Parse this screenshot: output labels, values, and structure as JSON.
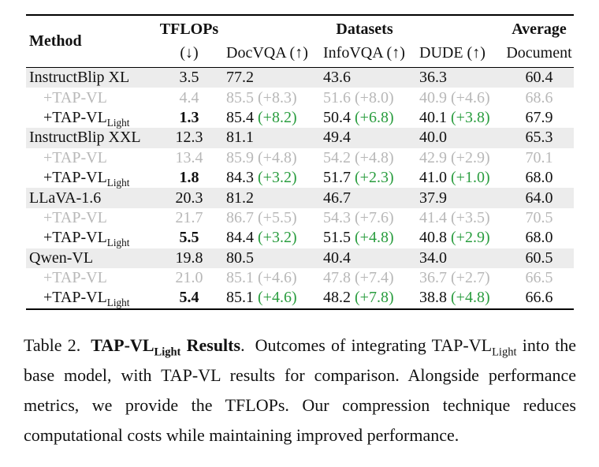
{
  "colors": {
    "green": "#2a9d3f",
    "gray-text": "#b8b8b8",
    "row-band": "#ececec"
  },
  "table": {
    "header": {
      "method": "Method",
      "tflops": "TFLOPs",
      "tflops_arrow": "(↓)",
      "datasets": "Datasets",
      "docvqa": "DocVQA (↑)",
      "infovqa": "InfoVQA (↑)",
      "dude": "DUDE (↑)",
      "average": "Average",
      "average_sub": "Document"
    },
    "rows": [
      {
        "method": "InstructBlip XL",
        "method_sub": "",
        "tflops": "3.5",
        "docvqa": "77.2",
        "docvqa_delta": "",
        "infovqa": "43.6",
        "infovqa_delta": "",
        "dude": "36.3",
        "dude_delta": "",
        "average": "60.4"
      },
      {
        "method": "+TAP-VL",
        "method_sub": "",
        "tflops": "4.4",
        "docvqa": "85.5",
        "docvqa_delta": "(+8.3)",
        "infovqa": "51.6",
        "infovqa_delta": "(+8.0)",
        "dude": "40.9",
        "dude_delta": "(+4.6)",
        "average": "68.6"
      },
      {
        "method": "+TAP-VL",
        "method_sub": "Light",
        "tflops": "1.3",
        "docvqa": "85.4",
        "docvqa_delta": "(+8.2)",
        "infovqa": "50.4",
        "infovqa_delta": "(+6.8)",
        "dude": "40.1",
        "dude_delta": "(+3.8)",
        "average": "67.9"
      },
      {
        "method": "InstructBlip XXL",
        "method_sub": "",
        "tflops": "12.3",
        "docvqa": "81.1",
        "docvqa_delta": "",
        "infovqa": "49.4",
        "infovqa_delta": "",
        "dude": "40.0",
        "dude_delta": "",
        "average": "65.3"
      },
      {
        "method": "+TAP-VL",
        "method_sub": "",
        "tflops": "13.4",
        "docvqa": "85.9",
        "docvqa_delta": "(+4.8)",
        "infovqa": "54.2",
        "infovqa_delta": "(+4.8)",
        "dude": "42.9",
        "dude_delta": "(+2.9)",
        "average": "70.1"
      },
      {
        "method": "+TAP-VL",
        "method_sub": "Light",
        "tflops": "1.8",
        "docvqa": "84.3",
        "docvqa_delta": "(+3.2)",
        "infovqa": "51.7",
        "infovqa_delta": "(+2.3)",
        "dude": "41.0",
        "dude_delta": "(+1.0)",
        "average": "68.0"
      },
      {
        "method": "LLaVA-1.6",
        "method_sub": "",
        "tflops": "20.3",
        "docvqa": "81.2",
        "docvqa_delta": "",
        "infovqa": "46.7",
        "infovqa_delta": "",
        "dude": "37.9",
        "dude_delta": "",
        "average": "64.0"
      },
      {
        "method": "+TAP-VL",
        "method_sub": "",
        "tflops": "21.7",
        "docvqa": "86.7",
        "docvqa_delta": "(+5.5)",
        "infovqa": "54.3",
        "infovqa_delta": "(+7.6)",
        "dude": "41.4",
        "dude_delta": "(+3.5)",
        "average": "70.5"
      },
      {
        "method": "+TAP-VL",
        "method_sub": "Light",
        "tflops": "5.5",
        "docvqa": "84.4",
        "docvqa_delta": "(+3.2)",
        "infovqa": "51.5",
        "infovqa_delta": "(+4.8)",
        "dude": "40.8",
        "dude_delta": "(+2.9)",
        "average": "68.0"
      },
      {
        "method": "Qwen-VL",
        "method_sub": "",
        "tflops": "19.8",
        "docvqa": "80.5",
        "docvqa_delta": "",
        "infovqa": "40.4",
        "infovqa_delta": "",
        "dude": "34.0",
        "dude_delta": "",
        "average": "60.5"
      },
      {
        "method": "+TAP-VL",
        "method_sub": "",
        "tflops": "21.0",
        "docvqa": "85.1",
        "docvqa_delta": "(+4.6)",
        "infovqa": "47.8",
        "infovqa_delta": "(+7.4)",
        "dude": "36.7",
        "dude_delta": "(+2.7)",
        "average": "66.5"
      },
      {
        "method": "+TAP-VL",
        "method_sub": "Light",
        "tflops": "5.4",
        "docvqa": "85.1",
        "docvqa_delta": "(+4.6)",
        "infovqa": "48.2",
        "infovqa_delta": "(+7.8)",
        "dude": "38.8",
        "dude_delta": "(+4.8)",
        "average": "66.6"
      }
    ]
  },
  "caption": {
    "label": "Table 2.",
    "title_main": "TAP-VL",
    "title_sub": "Light",
    "title_rest": " Results",
    "title_period": ".",
    "body_pre": "Outcomes of integrating TAP-VL",
    "body_sub": "Light",
    "body_rest": " into the base model, with TAP-VL results for comparison. Alongside performance metrics, we provide the TFLOPs. Our compression technique reduces computational costs while maintaining improved performance."
  }
}
